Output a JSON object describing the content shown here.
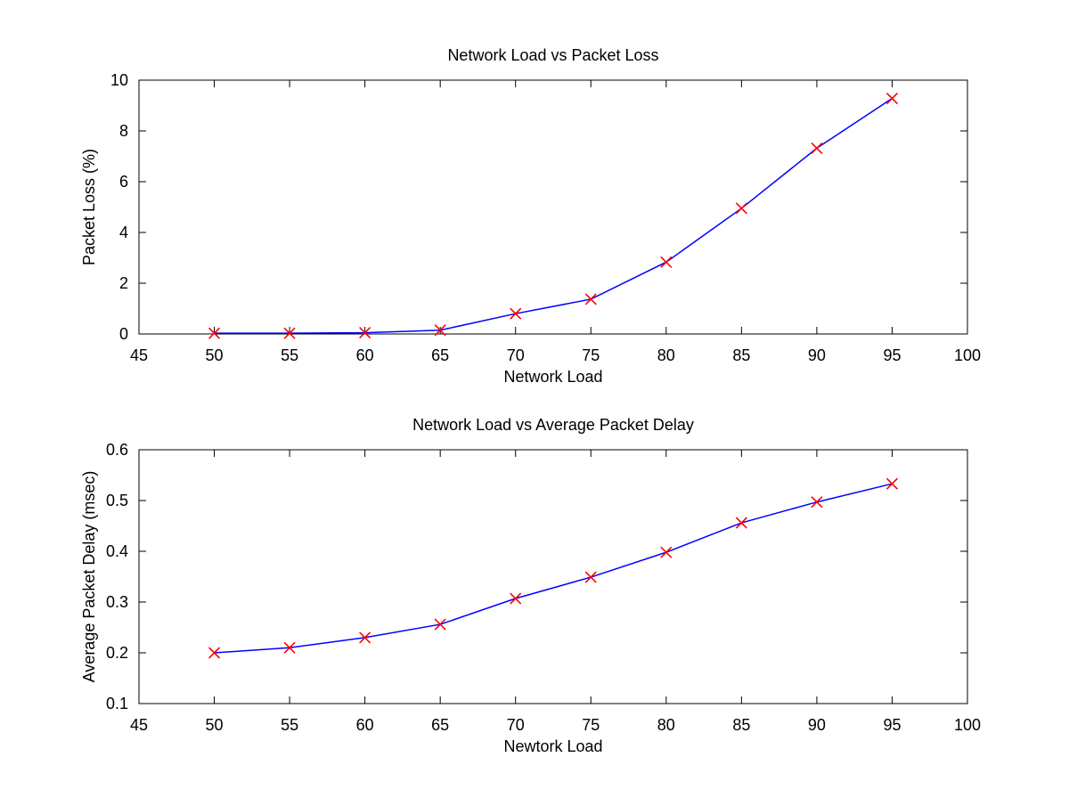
{
  "chart_data": [
    {
      "type": "line",
      "title": "Network Load vs Packet Loss",
      "xlabel": "Network Load",
      "ylabel": "Packet Loss (%)",
      "xlim": [
        45,
        100
      ],
      "ylim": [
        0,
        10
      ],
      "xticks": [
        45,
        50,
        55,
        60,
        65,
        70,
        75,
        80,
        85,
        90,
        95,
        100
      ],
      "yticks": [
        0,
        2,
        4,
        6,
        8,
        10
      ],
      "grid": false,
      "line_color": "#0000ff",
      "marker_color": "#ff0000",
      "marker": "x",
      "x": [
        50,
        55,
        60,
        65,
        70,
        75,
        80,
        85,
        90,
        95
      ],
      "series": [
        {
          "values": [
            0.03,
            0.03,
            0.05,
            0.15,
            0.8,
            1.37,
            2.83,
            4.95,
            7.32,
            9.28
          ]
        }
      ]
    },
    {
      "type": "line",
      "title": "Network Load vs Average Packet Delay",
      "xlabel": "Newtork Load",
      "ylabel": "Average Packet Delay (msec)",
      "xlim": [
        45,
        100
      ],
      "ylim": [
        0.1,
        0.6
      ],
      "xticks": [
        45,
        50,
        55,
        60,
        65,
        70,
        75,
        80,
        85,
        90,
        95,
        100
      ],
      "yticks": [
        0.1,
        0.2,
        0.3,
        0.4,
        0.5,
        0.6
      ],
      "grid": false,
      "line_color": "#0000ff",
      "marker_color": "#ff0000",
      "marker": "x",
      "x": [
        50,
        55,
        60,
        65,
        70,
        75,
        80,
        85,
        90,
        95
      ],
      "series": [
        {
          "values": [
            0.2,
            0.21,
            0.23,
            0.256,
            0.307,
            0.349,
            0.398,
            0.456,
            0.497,
            0.533
          ]
        }
      ]
    }
  ]
}
